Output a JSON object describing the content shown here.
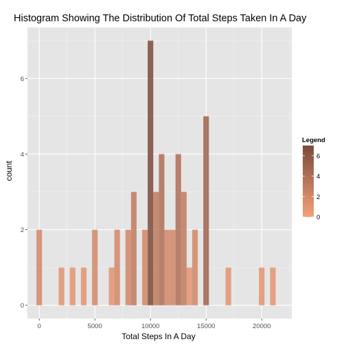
{
  "chart_data": {
    "type": "bar",
    "title": "Histogram Showing The Distribution Of Total Steps Taken In A Day",
    "xlabel": "Total Steps In A Day",
    "ylabel": "count",
    "xlim": [
      -1060,
      22700
    ],
    "ylim": [
      -0.35,
      7.35
    ],
    "grid": true,
    "x_ticks": [
      0,
      5000,
      10000,
      15000,
      20000
    ],
    "y_ticks": [
      0,
      2,
      4,
      6
    ],
    "bin_width": 500,
    "bins": [
      {
        "x": 0,
        "count": 2
      },
      {
        "x": 2000,
        "count": 1
      },
      {
        "x": 3000,
        "count": 1
      },
      {
        "x": 4000,
        "count": 1
      },
      {
        "x": 5000,
        "count": 2
      },
      {
        "x": 6500,
        "count": 1
      },
      {
        "x": 7000,
        "count": 2
      },
      {
        "x": 8000,
        "count": 2
      },
      {
        "x": 8500,
        "count": 3
      },
      {
        "x": 9500,
        "count": 2
      },
      {
        "x": 10000,
        "count": 7
      },
      {
        "x": 10500,
        "count": 3
      },
      {
        "x": 11000,
        "count": 4
      },
      {
        "x": 11500,
        "count": 2
      },
      {
        "x": 12000,
        "count": 2
      },
      {
        "x": 12500,
        "count": 4
      },
      {
        "x": 13000,
        "count": 3
      },
      {
        "x": 13500,
        "count": 1
      },
      {
        "x": 14000,
        "count": 2
      },
      {
        "x": 15000,
        "count": 5
      },
      {
        "x": 17000,
        "count": 1
      },
      {
        "x": 20000,
        "count": 1
      },
      {
        "x": 21000,
        "count": 1
      }
    ],
    "legend": {
      "title": "Legend",
      "position": "right",
      "ticks": [
        0,
        2,
        4,
        6
      ],
      "range": [
        0,
        7
      ],
      "low_color": "#f5a07a",
      "high_color": "#7a4a3a"
    },
    "colors": {
      "panel_background": "#e5e5e5",
      "grid_major": "#ffffff",
      "grid_minor": "#f2f2f2"
    }
  }
}
